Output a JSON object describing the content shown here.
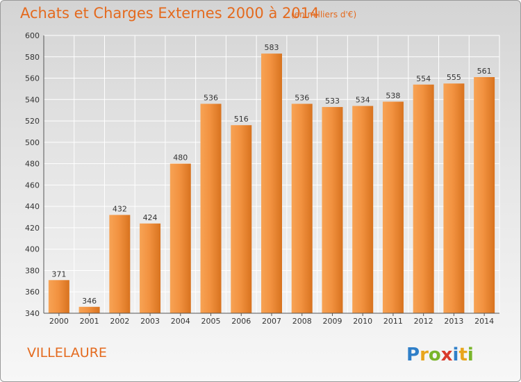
{
  "header": {
    "title": "Achats et Charges Externes 2000 à 2014",
    "subtitle": "(en milliers d'€)"
  },
  "footer": {
    "commune": "VILLELAURE",
    "logo_text": "Proxiti"
  },
  "colors": {
    "bar_light": "#f7a355",
    "bar_dark": "#d8731f",
    "accent": "#e46a1e",
    "grid": "#ffffff"
  },
  "chart_data": {
    "type": "bar",
    "title": "Achats et Charges Externes 2000 à 2014",
    "subtitle": "(en milliers d'€)",
    "xlabel": "",
    "ylabel": "",
    "categories": [
      "2000",
      "2001",
      "2002",
      "2003",
      "2004",
      "2005",
      "2006",
      "2007",
      "2008",
      "2009",
      "2010",
      "2011",
      "2012",
      "2013",
      "2014"
    ],
    "values": [
      371,
      346,
      432,
      424,
      480,
      536,
      516,
      583,
      536,
      533,
      534,
      538,
      554,
      555,
      561
    ],
    "ylim": [
      340,
      600
    ],
    "yticks": [
      340,
      360,
      380,
      400,
      420,
      440,
      460,
      480,
      500,
      520,
      540,
      560,
      580,
      600
    ],
    "grid": true,
    "legend": "none"
  }
}
